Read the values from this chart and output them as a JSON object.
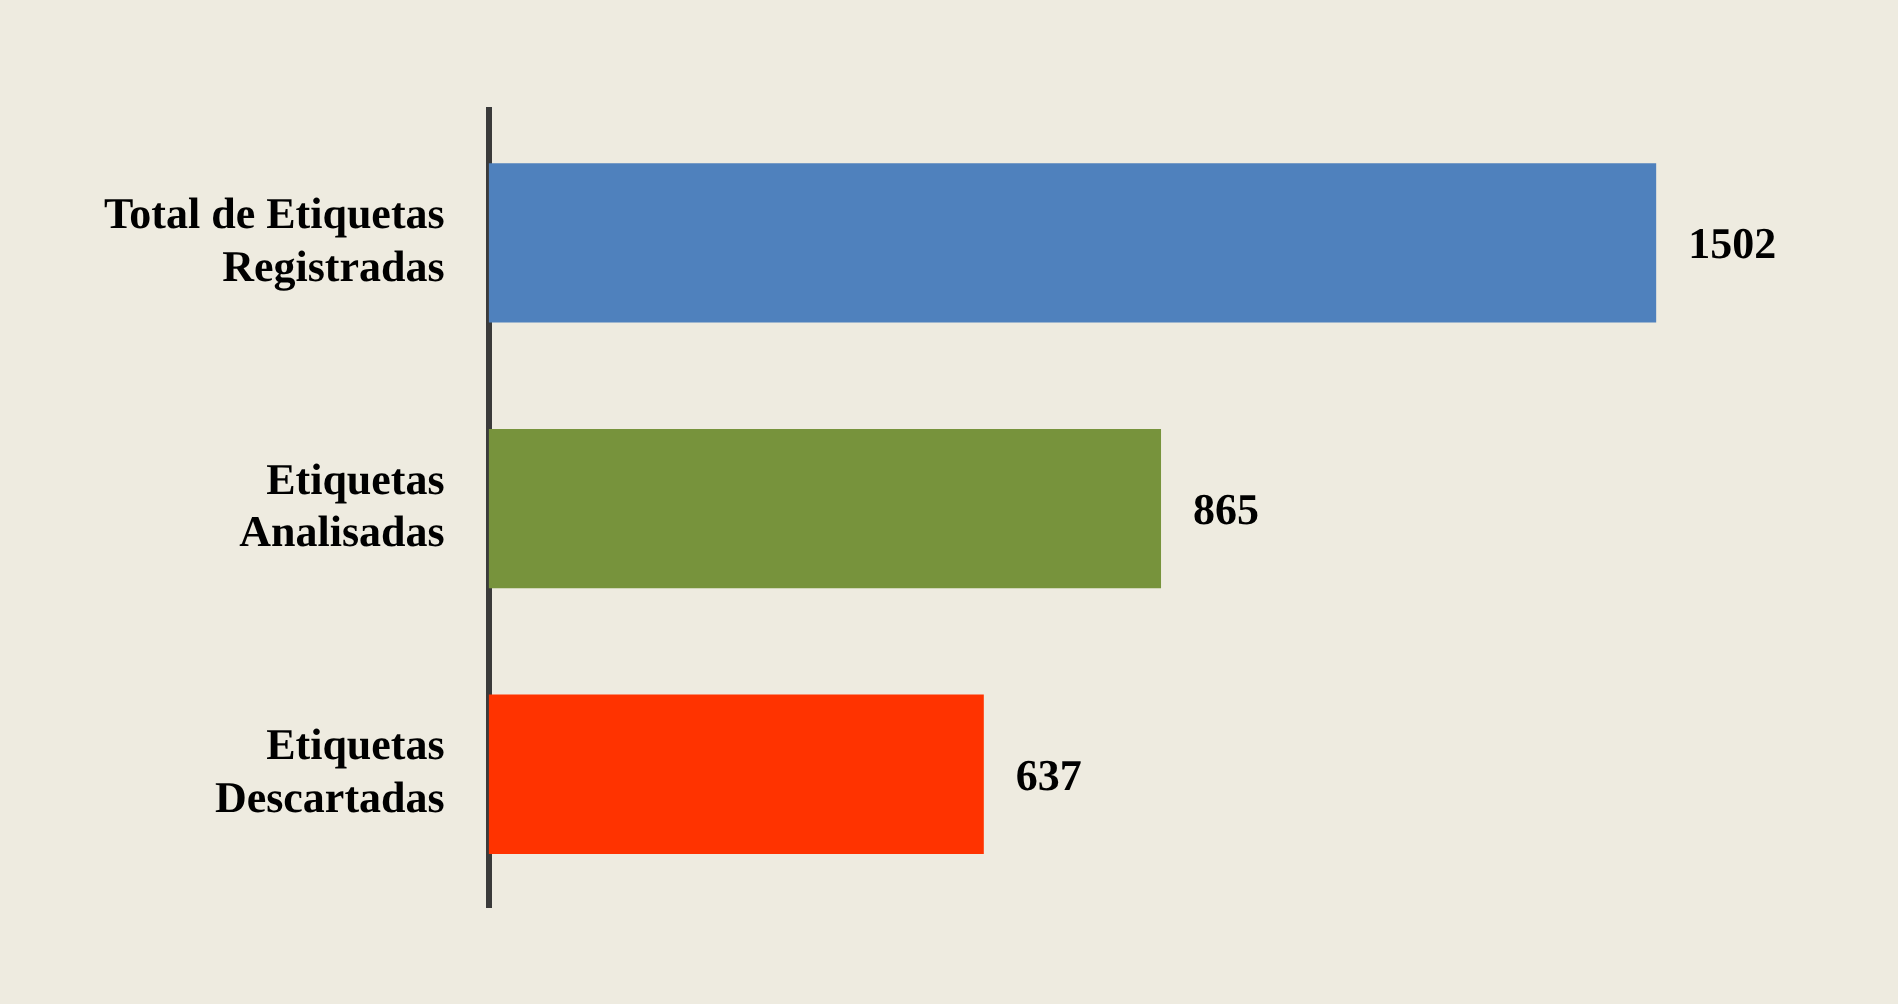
{
  "chart_data": {
    "type": "bar",
    "orientation": "horizontal",
    "categories": [
      "Total de Etiquetas Registradas",
      "Etiquetas Analisadas",
      "Etiquetas Descartadas"
    ],
    "values": [
      1502,
      865,
      637
    ],
    "colors": [
      "#4f81bd",
      "#77933c",
      "#ff3300"
    ],
    "data_labels": true,
    "legend": false,
    "tick_labels": "y"
  }
}
